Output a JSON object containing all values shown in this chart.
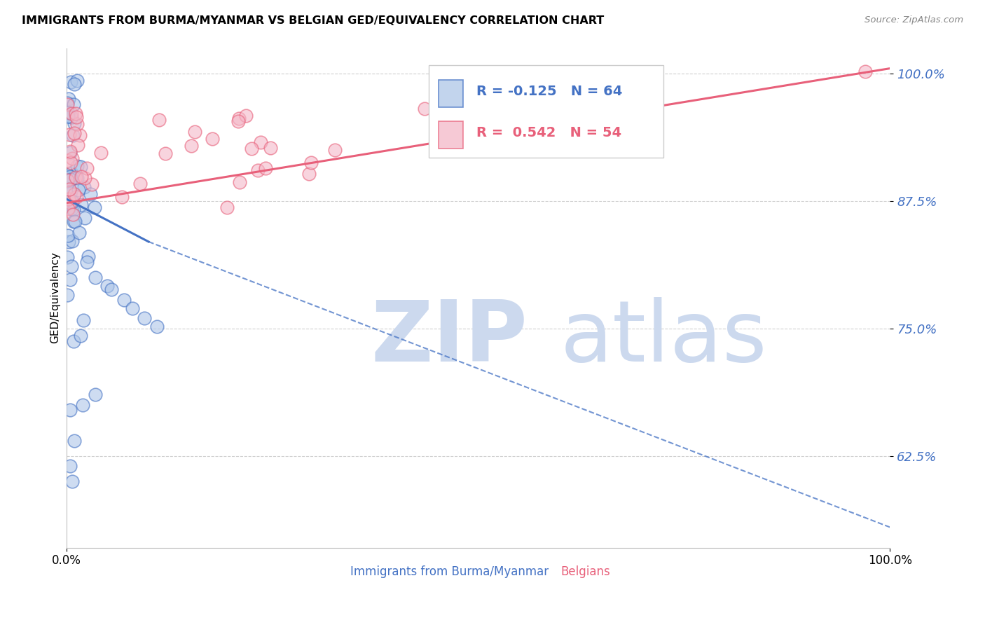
{
  "title": "IMMIGRANTS FROM BURMA/MYANMAR VS BELGIAN GED/EQUIVALENCY CORRELATION CHART",
  "source": "Source: ZipAtlas.com",
  "ylabel": "GED/Equivalency",
  "ytick_labels": [
    "62.5%",
    "75.0%",
    "87.5%",
    "100.0%"
  ],
  "ytick_values": [
    0.625,
    0.75,
    0.875,
    1.0
  ],
  "xmin": 0.0,
  "xmax": 1.0,
  "ymin": 0.535,
  "ymax": 1.025,
  "legend_r_blue": "-0.125",
  "legend_n_blue": "64",
  "legend_r_pink": "0.542",
  "legend_n_pink": "54",
  "blue_fill": "#aec6e8",
  "blue_edge": "#4472c4",
  "pink_fill": "#f4b8c8",
  "pink_edge": "#e8607a",
  "blue_line": "#4472c4",
  "pink_line": "#e8607a",
  "watermark_zip_color": "#ccd9ee",
  "watermark_atlas_color": "#ccd9ee"
}
